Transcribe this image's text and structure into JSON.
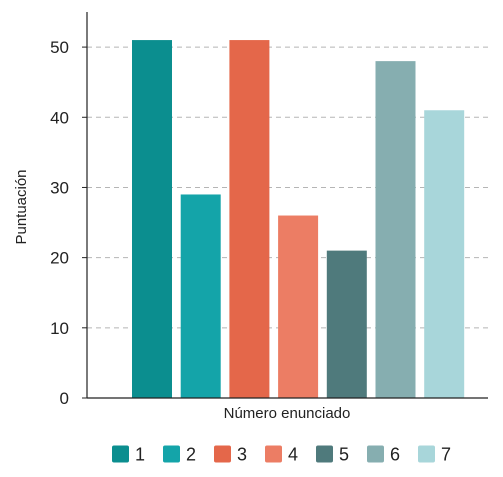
{
  "chart_data": {
    "type": "bar",
    "categories": [
      "1",
      "2",
      "3",
      "4",
      "5",
      "6",
      "7"
    ],
    "values": [
      51,
      29,
      51,
      26,
      21,
      48,
      41
    ],
    "colors": [
      "#0b8e8f",
      "#14a4a9",
      "#e4674a",
      "#ec7d64",
      "#4f7a7c",
      "#86aeb0",
      "#a8d6da"
    ],
    "xlabel": "Número enunciado",
    "ylabel": "Puntuación",
    "ylim": [
      0,
      55
    ],
    "yticks": [
      0,
      10,
      20,
      30,
      40,
      50
    ],
    "grid": true,
    "grid_color": "#b5b5b5",
    "legend_position": "bottom"
  }
}
